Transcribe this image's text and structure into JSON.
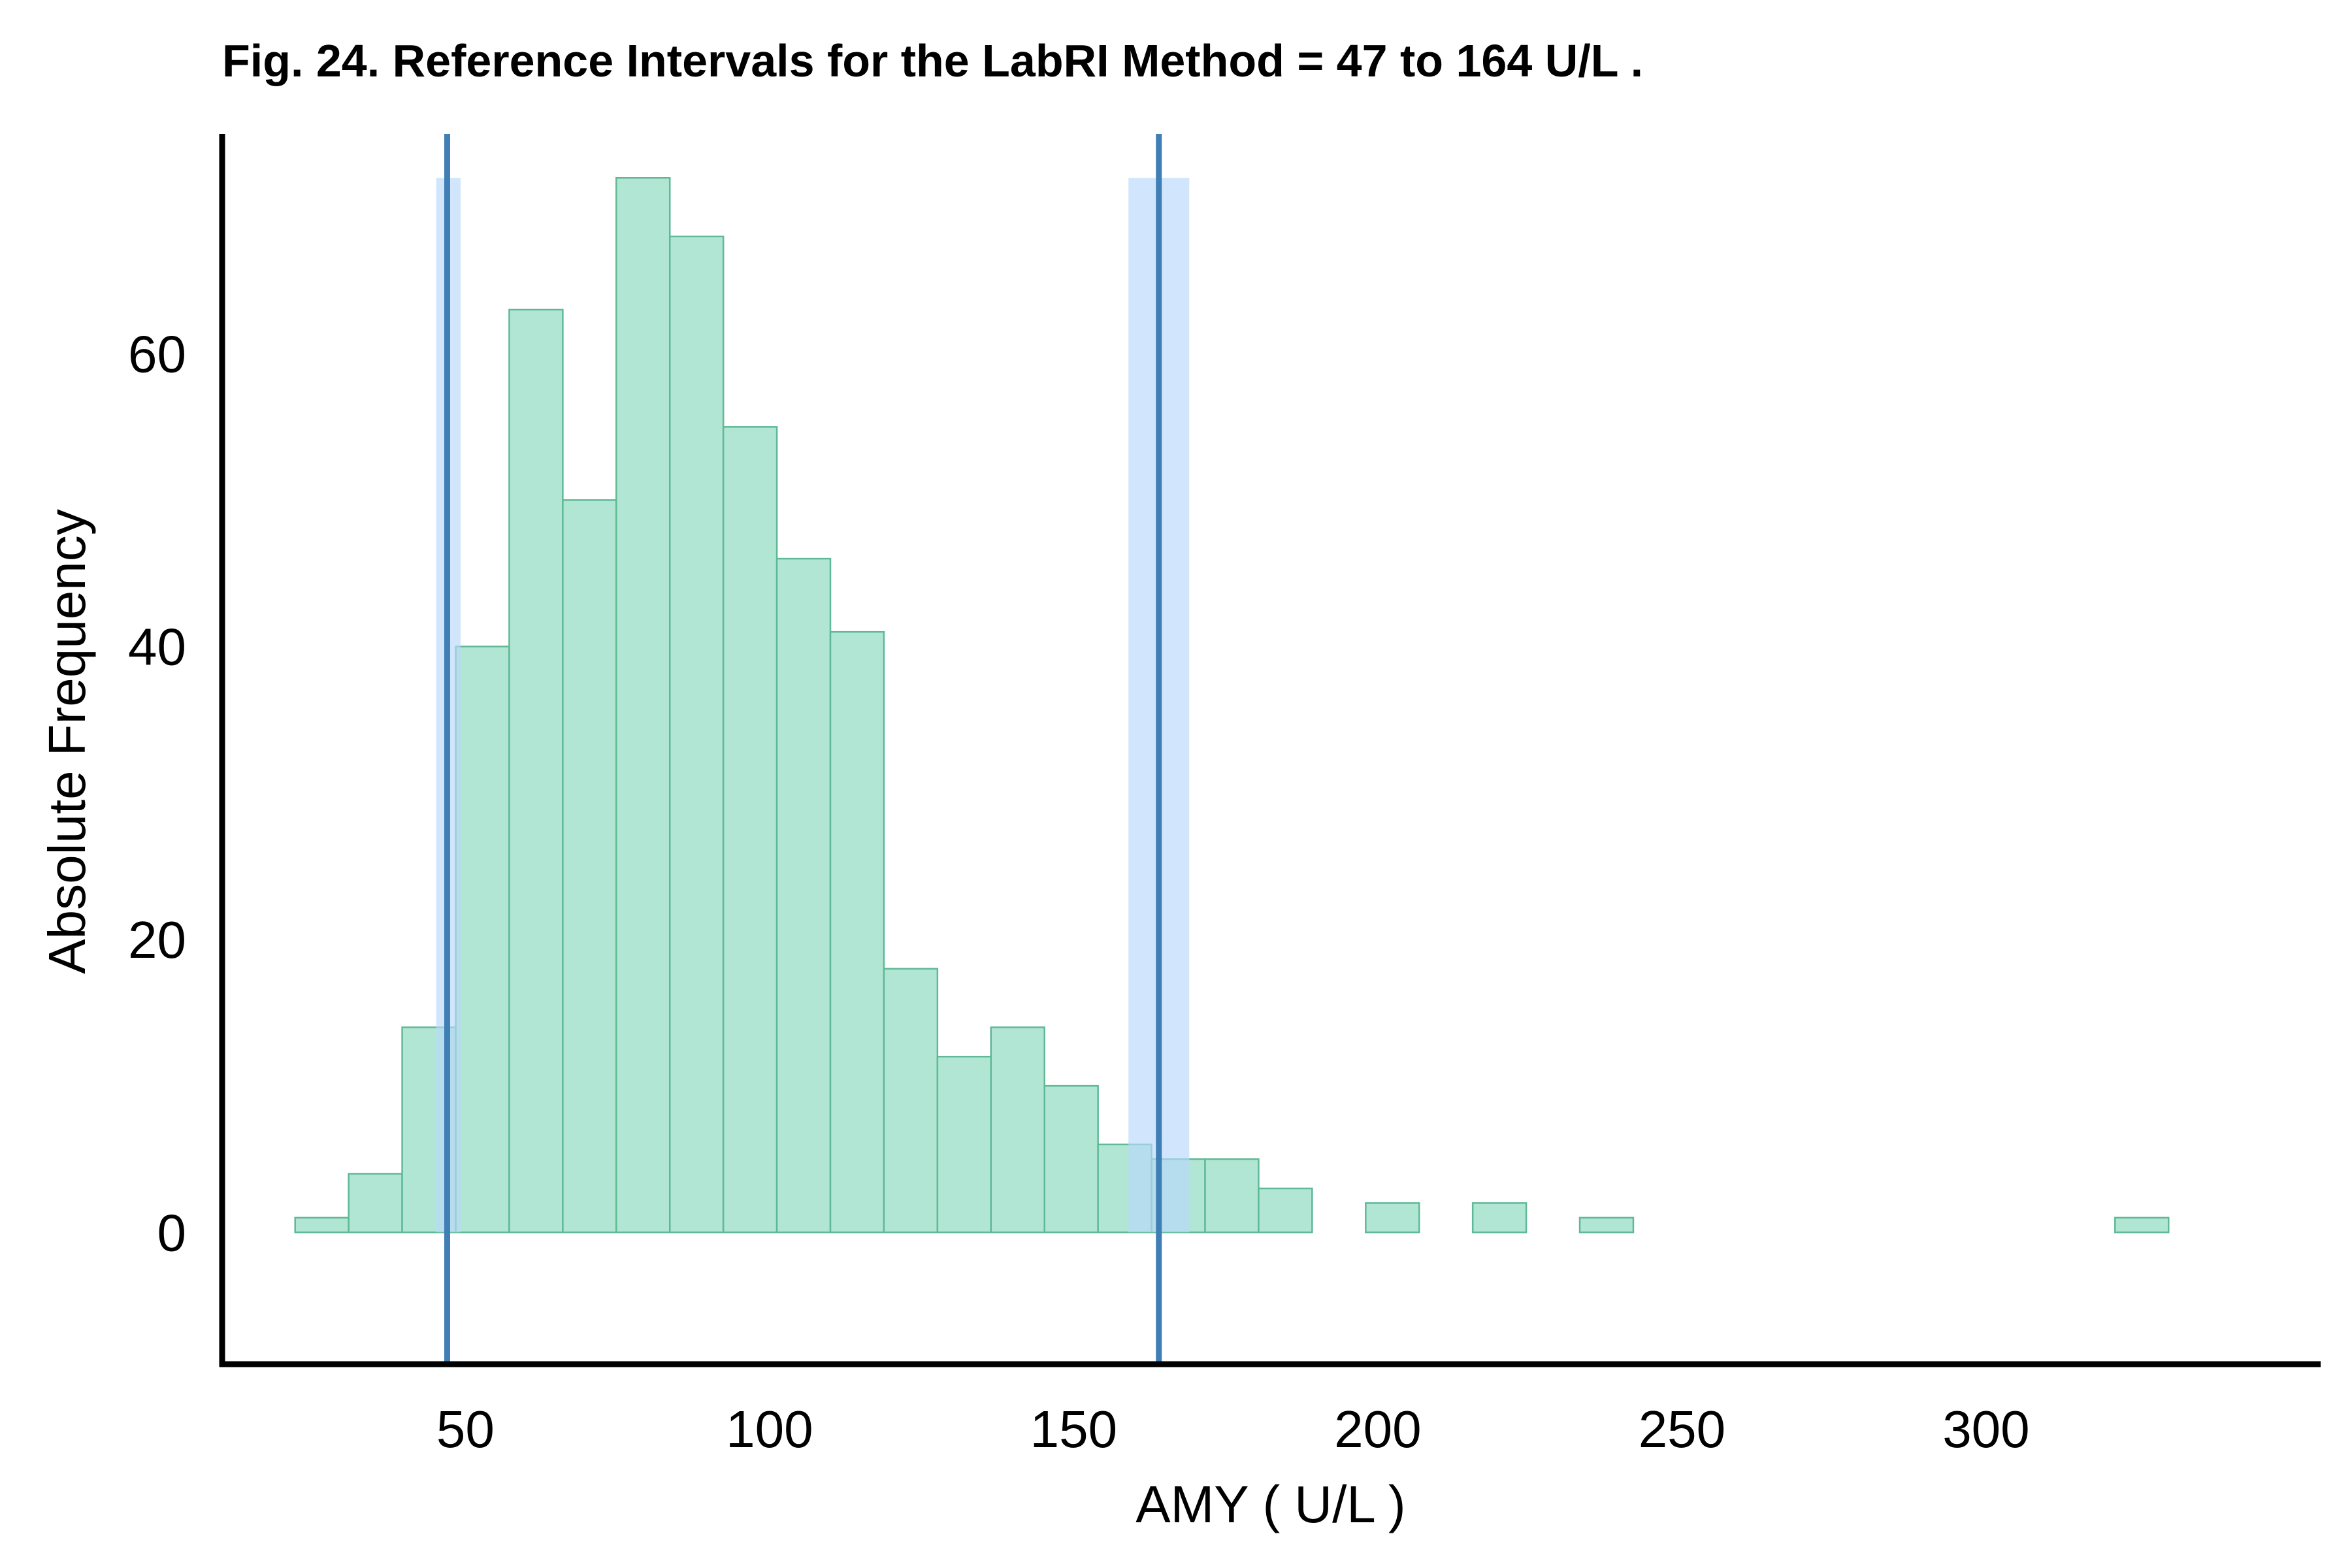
{
  "chart_data": {
    "type": "bar",
    "title": "Fig. 24. Reference Intervals for the LabRI Method = 47  to  164 U/L .",
    "xlabel": "AMY ( U/L )",
    "ylabel": "Absolute Frequency",
    "xlim": [
      10,
      355
    ],
    "ylim": [
      -9,
      75
    ],
    "x_ticks": [
      50,
      100,
      150,
      200,
      250,
      300
    ],
    "y_ticks": [
      0,
      20,
      40,
      60
    ],
    "grid": false,
    "bin_width": 8.8,
    "bins": [
      {
        "start": 22.0,
        "count": 1
      },
      {
        "start": 30.8,
        "count": 4
      },
      {
        "start": 39.6,
        "count": 14
      },
      {
        "start": 48.4,
        "count": 40
      },
      {
        "start": 57.2,
        "count": 63
      },
      {
        "start": 66.0,
        "count": 50
      },
      {
        "start": 74.8,
        "count": 72
      },
      {
        "start": 83.6,
        "count": 68
      },
      {
        "start": 92.4,
        "count": 55
      },
      {
        "start": 101.2,
        "count": 46
      },
      {
        "start": 110.0,
        "count": 41
      },
      {
        "start": 118.8,
        "count": 18
      },
      {
        "start": 127.6,
        "count": 12
      },
      {
        "start": 136.4,
        "count": 14
      },
      {
        "start": 145.2,
        "count": 10
      },
      {
        "start": 154.0,
        "count": 6
      },
      {
        "start": 162.8,
        "count": 5
      },
      {
        "start": 171.6,
        "count": 5
      },
      {
        "start": 180.4,
        "count": 3
      },
      {
        "start": 189.2,
        "count": 0
      },
      {
        "start": 198.0,
        "count": 2
      },
      {
        "start": 206.8,
        "count": 0
      },
      {
        "start": 215.6,
        "count": 2
      },
      {
        "start": 224.4,
        "count": 0
      },
      {
        "start": 233.2,
        "count": 1
      },
      {
        "start": 242.0,
        "count": 0
      },
      {
        "start": 250.8,
        "count": 0
      },
      {
        "start": 259.6,
        "count": 0
      },
      {
        "start": 268.4,
        "count": 0
      },
      {
        "start": 277.2,
        "count": 0
      },
      {
        "start": 286.0,
        "count": 0
      },
      {
        "start": 294.8,
        "count": 0
      },
      {
        "start": 303.6,
        "count": 0
      },
      {
        "start": 312.4,
        "count": 0
      },
      {
        "start": 321.2,
        "count": 1
      }
    ],
    "reference_limits": [
      {
        "value": 47,
        "ci": [
          45.2,
          49.2
        ]
      },
      {
        "value": 164,
        "ci": [
          159.0,
          169.0
        ]
      }
    ],
    "colors": {
      "bar_fill": "#b2e6d4",
      "bar_stroke": "#5fb996",
      "ci_band": "#b8d8fb",
      "limit_line": "#3f7fb5",
      "axis": "#000000",
      "text": "#000000"
    }
  }
}
